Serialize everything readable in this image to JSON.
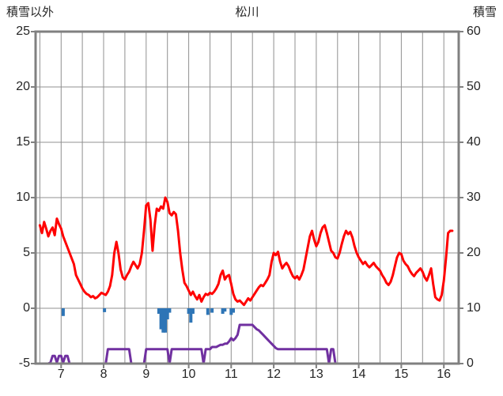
{
  "chart_data": {
    "type": "line",
    "title": "松川",
    "left_axis": {
      "label": "積雪以外",
      "min": -5,
      "max": 25,
      "ticks": [
        25,
        20,
        15,
        10,
        5,
        0,
        -5
      ]
    },
    "right_axis": {
      "label": "積雪",
      "min": 0,
      "max": 60,
      "ticks": [
        60,
        50,
        40,
        30,
        20,
        10,
        0
      ]
    },
    "x_axis": {
      "range": [
        6.4,
        16.35
      ],
      "ticks": [
        7,
        8,
        9,
        10,
        11,
        12,
        13,
        14,
        15,
        16
      ],
      "minor_grid_step": 0.5
    },
    "grid": true,
    "legend": "none",
    "colors": {
      "red_line": "#ff0000",
      "purple_line": "#7030a0",
      "blue_bars": "#2e75b6",
      "grid": "#909090",
      "frame": "#808080",
      "text": "#262626"
    },
    "series": [
      {
        "name": "red_line",
        "type": "line",
        "axis": "left",
        "color": "#ff0000",
        "x_start": 6.5,
        "x_step": 0.05,
        "values": [
          7.5,
          6.8,
          7.8,
          7.2,
          6.5,
          7.0,
          7.3,
          6.6,
          8.1,
          7.6,
          7.2,
          6.5,
          6.0,
          5.5,
          5.0,
          4.5,
          4.0,
          3.0,
          2.6,
          2.2,
          1.8,
          1.5,
          1.3,
          1.2,
          1.0,
          1.1,
          0.9,
          1.0,
          1.2,
          1.4,
          1.3,
          1.2,
          1.5,
          2.0,
          3.0,
          5.0,
          6.0,
          5.0,
          3.5,
          2.8,
          2.6,
          3.0,
          3.3,
          3.8,
          4.2,
          3.9,
          3.6,
          4.0,
          5.0,
          7.0,
          9.3,
          9.5,
          8.0,
          5.2,
          7.5,
          9.0,
          8.8,
          9.2,
          9.0,
          10.0,
          9.6,
          8.6,
          8.4,
          8.7,
          8.5,
          7.0,
          5.0,
          3.5,
          2.3,
          2.0,
          1.6,
          1.2,
          1.5,
          1.1,
          0.8,
          1.2,
          0.6,
          1.0,
          1.3,
          1.2,
          1.4,
          1.3,
          1.5,
          1.8,
          2.2,
          3.0,
          3.4,
          2.6,
          2.9,
          3.0,
          2.2,
          1.3,
          0.8,
          0.6,
          0.7,
          0.5,
          0.3,
          0.6,
          0.9,
          0.7,
          1.0,
          1.3,
          1.6,
          1.9,
          2.1,
          2.0,
          2.3,
          2.6,
          3.0,
          4.2,
          5.0,
          4.8,
          5.1,
          4.2,
          3.6,
          3.9,
          4.1,
          3.8,
          3.3,
          2.9,
          2.7,
          2.9,
          2.6,
          3.0,
          3.5,
          4.5,
          5.5,
          6.5,
          7.0,
          6.2,
          5.6,
          6.0,
          6.8,
          7.3,
          7.5,
          6.8,
          6.0,
          5.2,
          5.0,
          4.6,
          4.5,
          5.0,
          5.8,
          6.5,
          7.0,
          6.7,
          6.9,
          6.4,
          5.6,
          5.0,
          4.6,
          4.3,
          4.0,
          4.2,
          3.9,
          3.7,
          3.9,
          4.1,
          3.8,
          3.6,
          3.4,
          3.0,
          2.7,
          2.3,
          2.1,
          2.4,
          3.0,
          3.8,
          4.6,
          5.0,
          4.9,
          4.3,
          4.0,
          3.8,
          3.4,
          3.1,
          2.9,
          3.2,
          3.4,
          3.6,
          3.3,
          2.8,
          2.5,
          3.0,
          3.6,
          2.2,
          1.0,
          0.8,
          0.7,
          1.2,
          2.5,
          4.5,
          6.8,
          7.0,
          7.0
        ]
      },
      {
        "name": "purple_line",
        "type": "line",
        "axis": "right",
        "color": "#7030a0",
        "x_start": 6.5,
        "x_step": 0.05,
        "values": [
          0,
          0,
          0,
          0,
          0,
          0.2,
          1.4,
          1.4,
          0.2,
          1.4,
          1.4,
          0.2,
          1.4,
          1.4,
          0,
          0,
          0,
          0,
          0,
          0,
          0,
          0,
          0,
          0,
          0,
          0,
          0,
          0,
          0,
          0,
          0,
          0,
          2.6,
          2.6,
          2.6,
          2.6,
          2.6,
          2.6,
          2.6,
          2.6,
          2.6,
          2.6,
          2.6,
          0,
          0,
          0,
          0,
          0,
          0,
          0,
          2.6,
          2.6,
          2.6,
          2.6,
          2.6,
          2.6,
          2.6,
          2.6,
          2.6,
          2.6,
          2.6,
          0,
          2.6,
          2.6,
          2.6,
          2.6,
          2.6,
          2.6,
          2.6,
          2.6,
          2.6,
          2.6,
          2.6,
          2.6,
          2.6,
          2.6,
          2.6,
          0,
          2.6,
          2.6,
          2.6,
          3.0,
          3.0,
          3.0,
          3.2,
          3.4,
          3.4,
          3.6,
          3.6,
          4.0,
          4.6,
          4.2,
          4.6,
          5.2,
          7.0,
          7.0,
          7.0,
          7.0,
          7.0,
          7.0,
          7.0,
          6.6,
          6.2,
          6.0,
          5.6,
          5.2,
          4.8,
          4.4,
          4.0,
          3.6,
          3.2,
          2.8,
          2.6,
          2.6,
          2.6,
          2.6,
          2.6,
          2.6,
          2.6,
          2.6,
          2.6,
          2.6,
          2.6,
          2.6,
          2.6,
          2.6,
          2.6,
          2.6,
          2.6,
          2.6,
          2.6,
          2.6,
          2.6,
          2.6,
          2.6,
          2.6,
          0,
          2.6,
          2.6,
          0,
          0,
          0,
          0,
          0,
          0,
          0,
          0,
          0,
          0,
          0,
          0,
          0,
          0,
          0,
          0,
          0,
          0,
          0,
          0,
          0,
          0,
          0,
          0,
          0,
          0,
          0,
          0,
          0,
          0,
          0,
          0,
          0,
          0,
          0,
          0,
          0,
          0,
          0,
          0,
          0,
          0,
          0,
          0,
          0,
          0,
          0,
          0,
          0,
          0,
          0,
          0,
          0,
          0,
          0,
          0,
          0,
          0
        ]
      },
      {
        "name": "blue_bars",
        "type": "bar",
        "axis": "left",
        "color": "#2e75b6",
        "points": [
          [
            7.05,
            -0.7
          ],
          [
            8.02,
            -0.35
          ],
          [
            9.3,
            -0.5
          ],
          [
            9.35,
            -1.9
          ],
          [
            9.4,
            -2.2
          ],
          [
            9.45,
            -2.2
          ],
          [
            9.5,
            -1.0
          ],
          [
            9.55,
            -0.4
          ],
          [
            10.0,
            -0.5
          ],
          [
            10.05,
            -1.3
          ],
          [
            10.1,
            -0.5
          ],
          [
            10.45,
            -0.6
          ],
          [
            10.55,
            -0.4
          ],
          [
            10.8,
            -0.5
          ],
          [
            10.85,
            -0.3
          ],
          [
            11.0,
            -0.6
          ],
          [
            11.05,
            -0.4
          ]
        ]
      }
    ]
  }
}
